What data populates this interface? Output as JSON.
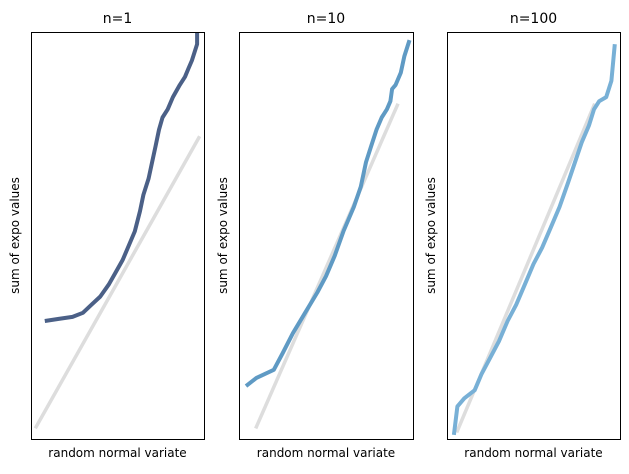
{
  "colors": {
    "reference_line": "#dddddd",
    "frame": "#000000",
    "series_n1": "#4b6087",
    "series_n10": "#5f9ac4",
    "series_n100": "#78b0d6"
  },
  "chart_data": [
    {
      "type": "line",
      "title": "n=1",
      "xlabel": "random normal variate",
      "ylabel": "sum of expo values",
      "xlim": [
        0,
        1
      ],
      "ylim": [
        0,
        1
      ],
      "grid": false,
      "axis_ticks": false,
      "legend": "none",
      "reference_line": [
        [
          0.03,
          0.03
        ],
        [
          0.97,
          0.74
        ]
      ],
      "series": [
        {
          "color_key": "series_n1",
          "points": [
            [
              0.08,
              0.29
            ],
            [
              0.16,
              0.295
            ],
            [
              0.24,
              0.3
            ],
            [
              0.3,
              0.31
            ],
            [
              0.35,
              0.33
            ],
            [
              0.4,
              0.35
            ],
            [
              0.45,
              0.38
            ],
            [
              0.49,
              0.41
            ],
            [
              0.53,
              0.44
            ],
            [
              0.57,
              0.48
            ],
            [
              0.6,
              0.51
            ],
            [
              0.63,
              0.56
            ],
            [
              0.65,
              0.6
            ],
            [
              0.68,
              0.64
            ],
            [
              0.7,
              0.68
            ],
            [
              0.72,
              0.72
            ],
            [
              0.74,
              0.76
            ],
            [
              0.76,
              0.79
            ],
            [
              0.79,
              0.81
            ],
            [
              0.82,
              0.84
            ],
            [
              0.86,
              0.87
            ],
            [
              0.89,
              0.89
            ],
            [
              0.91,
              0.91
            ],
            [
              0.93,
              0.93
            ],
            [
              0.96,
              0.97
            ],
            [
              0.96,
              1.02
            ]
          ]
        }
      ]
    },
    {
      "type": "line",
      "title": "n=10",
      "xlabel": "random normal variate",
      "ylabel": "sum of expo values",
      "xlim": [
        0,
        1
      ],
      "ylim": [
        0,
        1
      ],
      "grid": false,
      "axis_ticks": false,
      "legend": "none",
      "reference_line": [
        [
          0.1,
          0.03
        ],
        [
          0.91,
          0.82
        ]
      ],
      "series": [
        {
          "color_key": "series_n10",
          "points": [
            [
              0.04,
              0.13
            ],
            [
              0.1,
              0.15
            ],
            [
              0.2,
              0.17
            ],
            [
              0.25,
              0.21
            ],
            [
              0.31,
              0.26
            ],
            [
              0.38,
              0.31
            ],
            [
              0.45,
              0.36
            ],
            [
              0.5,
              0.4
            ],
            [
              0.55,
              0.45
            ],
            [
              0.6,
              0.51
            ],
            [
              0.66,
              0.57
            ],
            [
              0.7,
              0.62
            ],
            [
              0.73,
              0.68
            ],
            [
              0.76,
              0.72
            ],
            [
              0.79,
              0.76
            ],
            [
              0.82,
              0.79
            ],
            [
              0.85,
              0.81
            ],
            [
              0.87,
              0.83
            ],
            [
              0.88,
              0.86
            ],
            [
              0.9,
              0.87
            ],
            [
              0.93,
              0.9
            ],
            [
              0.95,
              0.94
            ],
            [
              0.98,
              0.98
            ]
          ]
        }
      ]
    },
    {
      "type": "line",
      "title": "n=100",
      "xlabel": "random normal variate",
      "ylabel": "sum of expo values",
      "xlim": [
        0,
        1
      ],
      "ylim": [
        0,
        1
      ],
      "grid": false,
      "axis_ticks": false,
      "legend": "none",
      "reference_line": [
        [
          0.06,
          0.02
        ],
        [
          0.85,
          0.82
        ]
      ],
      "series": [
        {
          "color_key": "series_n100",
          "points": [
            [
              0.04,
              0.01
            ],
            [
              0.06,
              0.08
            ],
            [
              0.1,
              0.1
            ],
            [
              0.16,
              0.12
            ],
            [
              0.2,
              0.16
            ],
            [
              0.25,
              0.2
            ],
            [
              0.3,
              0.24
            ],
            [
              0.35,
              0.29
            ],
            [
              0.4,
              0.33
            ],
            [
              0.45,
              0.38
            ],
            [
              0.5,
              0.43
            ],
            [
              0.55,
              0.47
            ],
            [
              0.6,
              0.52
            ],
            [
              0.65,
              0.57
            ],
            [
              0.7,
              0.63
            ],
            [
              0.74,
              0.68
            ],
            [
              0.78,
              0.73
            ],
            [
              0.82,
              0.77
            ],
            [
              0.85,
              0.81
            ],
            [
              0.88,
              0.83
            ],
            [
              0.92,
              0.84
            ],
            [
              0.95,
              0.88
            ],
            [
              0.97,
              0.97
            ]
          ]
        }
      ]
    }
  ]
}
